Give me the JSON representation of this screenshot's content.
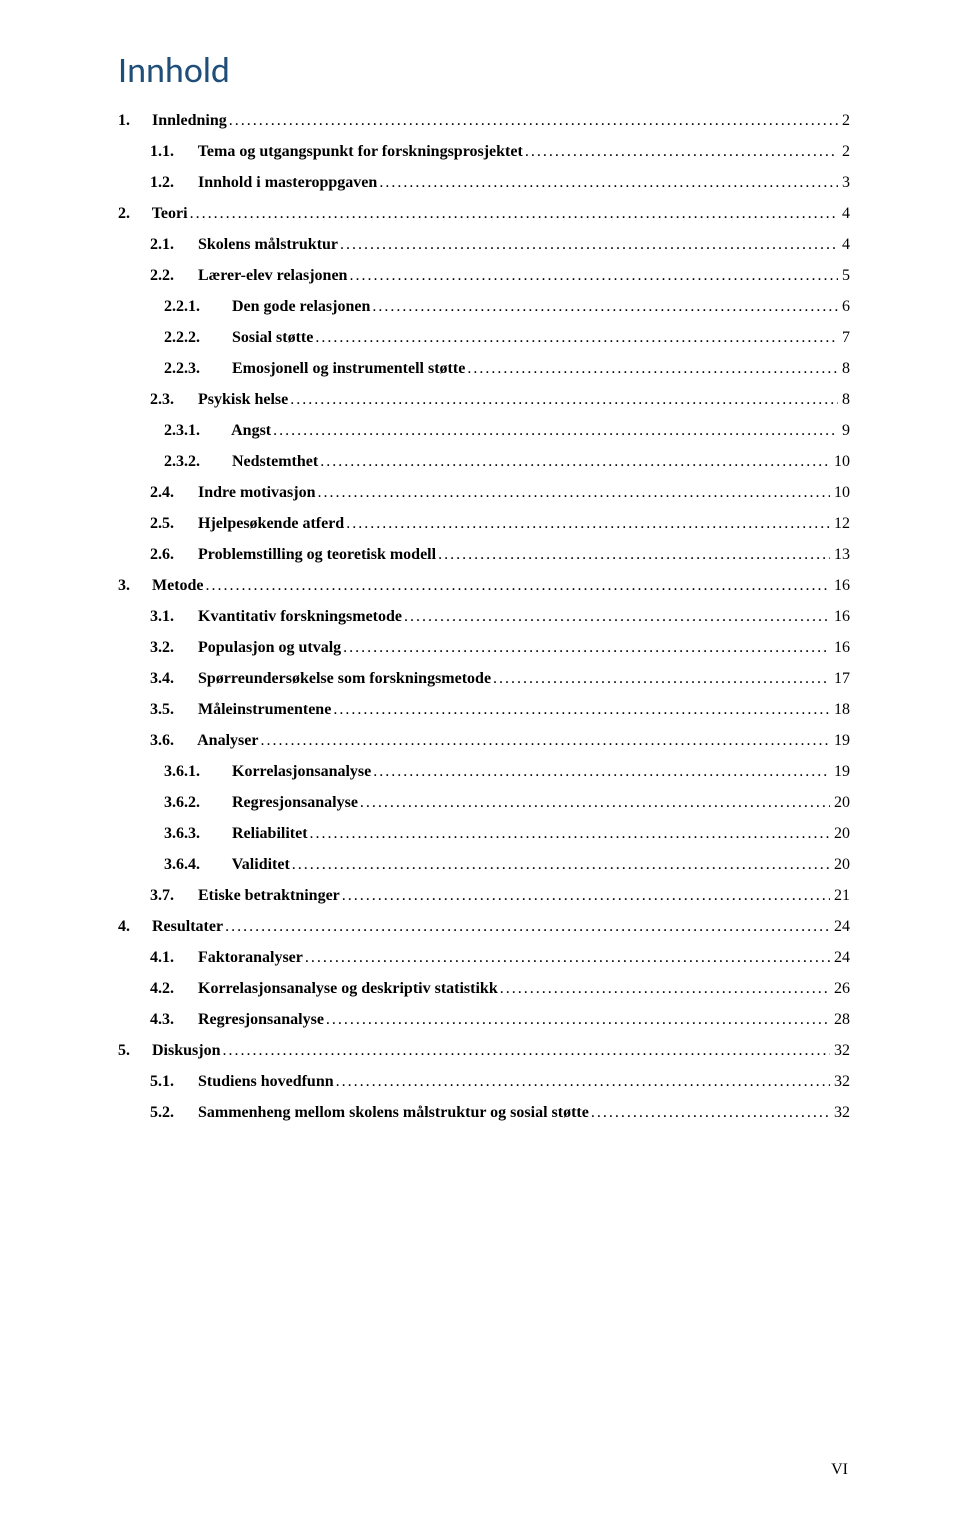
{
  "title": "Innhold",
  "footer_page": "VI",
  "text_color": "#000000",
  "title_color": "#1f4e79",
  "background_color": "#ffffff",
  "font_family_body": "Times New Roman",
  "font_family_title": "Calibri",
  "title_fontsize": 36,
  "body_fontsize": 16,
  "entries": [
    {
      "level": 1,
      "num": "1.",
      "text": "Innledning",
      "page": "2",
      "bold": true
    },
    {
      "level": 2,
      "num": "1.1.",
      "text": "Tema og utgangspunkt for forskningsprosjektet",
      "page": "2",
      "bold": true
    },
    {
      "level": 2,
      "num": "1.2.",
      "text": "Innhold i masteroppgaven",
      "page": "3",
      "bold": true
    },
    {
      "level": 1,
      "num": "2.",
      "text": "Teori",
      "page": "4",
      "bold": true
    },
    {
      "level": 2,
      "num": "2.1.",
      "text": "Skolens målstruktur",
      "page": "4",
      "bold": true
    },
    {
      "level": 2,
      "num": "2.2.",
      "text": "Lærer-elev relasjonen",
      "page": "5",
      "bold": true
    },
    {
      "level": 3,
      "num": "2.2.1.",
      "text": "Den gode relasjonen",
      "page": "6",
      "bold": true
    },
    {
      "level": 3,
      "num": "2.2.2.",
      "text": "Sosial støtte",
      "page": "7",
      "bold": true
    },
    {
      "level": 3,
      "num": "2.2.3.",
      "text": "Emosjonell og instrumentell støtte",
      "page": "8",
      "bold": true
    },
    {
      "level": 2,
      "num": "2.3.",
      "text": "Psykisk helse",
      "page": "8",
      "bold": true
    },
    {
      "level": 3,
      "num": "2.3.1.",
      "text": "Angst",
      "page": "9",
      "bold": true
    },
    {
      "level": 3,
      "num": "2.3.2.",
      "text": "Nedstemthet",
      "page": "10",
      "bold": true
    },
    {
      "level": 2,
      "num": "2.4.",
      "text": "Indre motivasjon",
      "page": "10",
      "bold": true
    },
    {
      "level": 2,
      "num": "2.5.",
      "text": "Hjelpesøkende atferd",
      "page": "12",
      "bold": true
    },
    {
      "level": 2,
      "num": "2.6.",
      "text": "Problemstilling og teoretisk modell",
      "page": "13",
      "bold": true
    },
    {
      "level": 1,
      "num": "3.",
      "text": "Metode",
      "page": "16",
      "bold": true
    },
    {
      "level": 2,
      "num": "3.1.",
      "text": "Kvantitativ forskningsmetode",
      "page": "16",
      "bold": true
    },
    {
      "level": 2,
      "num": "3.2.",
      "text": "Populasjon og utvalg",
      "page": "16",
      "bold": true
    },
    {
      "level": 2,
      "num": "3.4.",
      "text": "Spørreundersøkelse som forskningsmetode",
      "page": "17",
      "bold": true
    },
    {
      "level": 2,
      "num": "3.5.",
      "text": "Måleinstrumentene",
      "page": "18",
      "bold": true
    },
    {
      "level": 2,
      "num": "3.6.",
      "text": "Analyser",
      "page": "19",
      "bold": true
    },
    {
      "level": 3,
      "num": "3.6.1.",
      "text": "Korrelasjonsanalyse",
      "page": "19",
      "bold": true
    },
    {
      "level": 3,
      "num": "3.6.2.",
      "text": "Regresjonsanalyse",
      "page": "20",
      "bold": true
    },
    {
      "level": 3,
      "num": "3.6.3.",
      "text": "Reliabilitet",
      "page": "20",
      "bold": true
    },
    {
      "level": 3,
      "num": "3.6.4.",
      "text": "Validitet",
      "page": "20",
      "bold": true
    },
    {
      "level": 2,
      "num": "3.7.",
      "text": "Etiske betraktninger",
      "page": "21",
      "bold": true
    },
    {
      "level": 1,
      "num": "4.",
      "text": "Resultater",
      "page": "24",
      "bold": true
    },
    {
      "level": 2,
      "num": "4.1.",
      "text": "Faktoranalyser",
      "page": "24",
      "bold": true
    },
    {
      "level": 2,
      "num": "4.2.",
      "text": "Korrelasjonsanalyse og deskriptiv statistikk",
      "page": "26",
      "bold": true
    },
    {
      "level": 2,
      "num": "4.3.",
      "text": "Regresjonsanalyse",
      "page": "28",
      "bold": true
    },
    {
      "level": 1,
      "num": "5.",
      "text": "Diskusjon",
      "page": "32",
      "bold": true
    },
    {
      "level": 2,
      "num": "5.1.",
      "text": "Studiens hovedfunn",
      "page": "32",
      "bold": true
    },
    {
      "level": 2,
      "num": "5.2.",
      "text": "Sammenheng mellom skolens målstruktur og sosial støtte",
      "page": "32",
      "bold": true
    }
  ]
}
